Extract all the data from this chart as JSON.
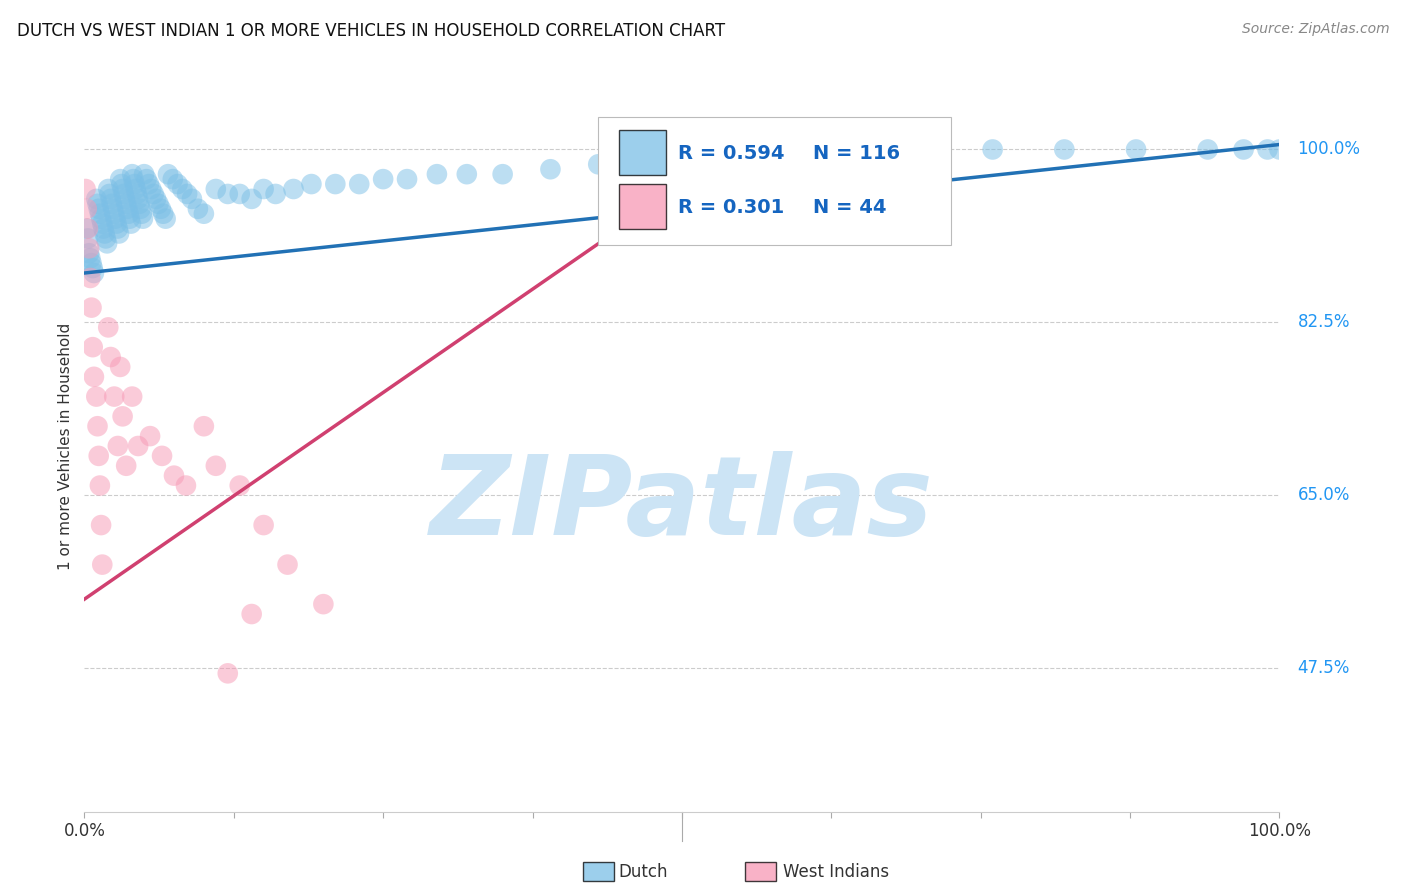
{
  "title": "DUTCH VS WEST INDIAN 1 OR MORE VEHICLES IN HOUSEHOLD CORRELATION CHART",
  "source": "Source: ZipAtlas.com",
  "ylabel": "1 or more Vehicles in Household",
  "y_tick_labels": [
    "47.5%",
    "65.0%",
    "82.5%",
    "100.0%"
  ],
  "y_tick_values": [
    0.475,
    0.65,
    0.825,
    1.0
  ],
  "xlim": [
    0.0,
    1.0
  ],
  "ylim": [
    0.33,
    1.07
  ],
  "watermark": "ZIPatlas",
  "legend_R_dutch": "R = 0.594",
  "legend_N_dutch": "N = 116",
  "legend_R_west": "R = 0.301",
  "legend_N_west": "N = 44",
  "dutch_color": "#7bbfe6",
  "west_indian_color": "#f799b5",
  "dutch_line_color": "#2171b5",
  "west_indian_line_color": "#d04070",
  "dutch_scatter_alpha": 0.5,
  "west_indian_scatter_alpha": 0.5,
  "dutch_trend_x0": 0.0,
  "dutch_trend_y0": 0.875,
  "dutch_trend_x1": 1.0,
  "dutch_trend_y1": 1.005,
  "west_trend_x0": 0.0,
  "west_trend_y0": 0.545,
  "west_trend_x1": 0.55,
  "west_trend_y1": 1.005,
  "background_color": "#ffffff",
  "grid_color": "#cccccc",
  "watermark_color": "#cce4f5",
  "watermark_fontsize": 80,
  "dutch_x": [
    0.002,
    0.003,
    0.004,
    0.005,
    0.006,
    0.007,
    0.008,
    0.01,
    0.011,
    0.012,
    0.013,
    0.014,
    0.015,
    0.016,
    0.017,
    0.018,
    0.019,
    0.02,
    0.021,
    0.022,
    0.023,
    0.024,
    0.025,
    0.026,
    0.027,
    0.028,
    0.029,
    0.03,
    0.031,
    0.032,
    0.033,
    0.034,
    0.035,
    0.036,
    0.037,
    0.038,
    0.039,
    0.04,
    0.041,
    0.042,
    0.043,
    0.044,
    0.045,
    0.046,
    0.047,
    0.048,
    0.049,
    0.05,
    0.052,
    0.054,
    0.056,
    0.058,
    0.06,
    0.062,
    0.064,
    0.066,
    0.068,
    0.07,
    0.074,
    0.078,
    0.082,
    0.086,
    0.09,
    0.095,
    0.1,
    0.11,
    0.12,
    0.13,
    0.14,
    0.15,
    0.16,
    0.175,
    0.19,
    0.21,
    0.23,
    0.25,
    0.27,
    0.295,
    0.32,
    0.35,
    0.39,
    0.43,
    0.48,
    0.53,
    0.58,
    0.64,
    0.7,
    0.76,
    0.82,
    0.88,
    0.94,
    0.97,
    0.99,
    1.0
  ],
  "dutch_y": [
    0.92,
    0.91,
    0.895,
    0.89,
    0.885,
    0.88,
    0.875,
    0.95,
    0.945,
    0.94,
    0.935,
    0.93,
    0.925,
    0.92,
    0.915,
    0.91,
    0.905,
    0.96,
    0.955,
    0.95,
    0.945,
    0.94,
    0.935,
    0.93,
    0.925,
    0.92,
    0.915,
    0.97,
    0.965,
    0.96,
    0.955,
    0.95,
    0.945,
    0.94,
    0.935,
    0.93,
    0.925,
    0.975,
    0.97,
    0.965,
    0.96,
    0.955,
    0.95,
    0.945,
    0.94,
    0.935,
    0.93,
    0.975,
    0.97,
    0.965,
    0.96,
    0.955,
    0.95,
    0.945,
    0.94,
    0.935,
    0.93,
    0.975,
    0.97,
    0.965,
    0.96,
    0.955,
    0.95,
    0.94,
    0.935,
    0.96,
    0.955,
    0.955,
    0.95,
    0.96,
    0.955,
    0.96,
    0.965,
    0.965,
    0.965,
    0.97,
    0.97,
    0.975,
    0.975,
    0.975,
    0.98,
    0.985,
    0.99,
    0.995,
    0.998,
    1.0,
    1.0,
    1.0,
    1.0,
    1.0,
    1.0,
    1.0,
    1.0,
    1.0
  ],
  "west_x": [
    0.001,
    0.002,
    0.003,
    0.004,
    0.005,
    0.006,
    0.007,
    0.008,
    0.01,
    0.011,
    0.012,
    0.013,
    0.014,
    0.015,
    0.02,
    0.022,
    0.025,
    0.028,
    0.03,
    0.032,
    0.035,
    0.04,
    0.045,
    0.055,
    0.065,
    0.075,
    0.085,
    0.1,
    0.11,
    0.13,
    0.15,
    0.17,
    0.2,
    0.12,
    0.14
  ],
  "west_y": [
    0.96,
    0.94,
    0.92,
    0.9,
    0.87,
    0.84,
    0.8,
    0.77,
    0.75,
    0.72,
    0.69,
    0.66,
    0.62,
    0.58,
    0.82,
    0.79,
    0.75,
    0.7,
    0.78,
    0.73,
    0.68,
    0.75,
    0.7,
    0.71,
    0.69,
    0.67,
    0.66,
    0.72,
    0.68,
    0.66,
    0.62,
    0.58,
    0.54,
    0.47,
    0.53
  ]
}
